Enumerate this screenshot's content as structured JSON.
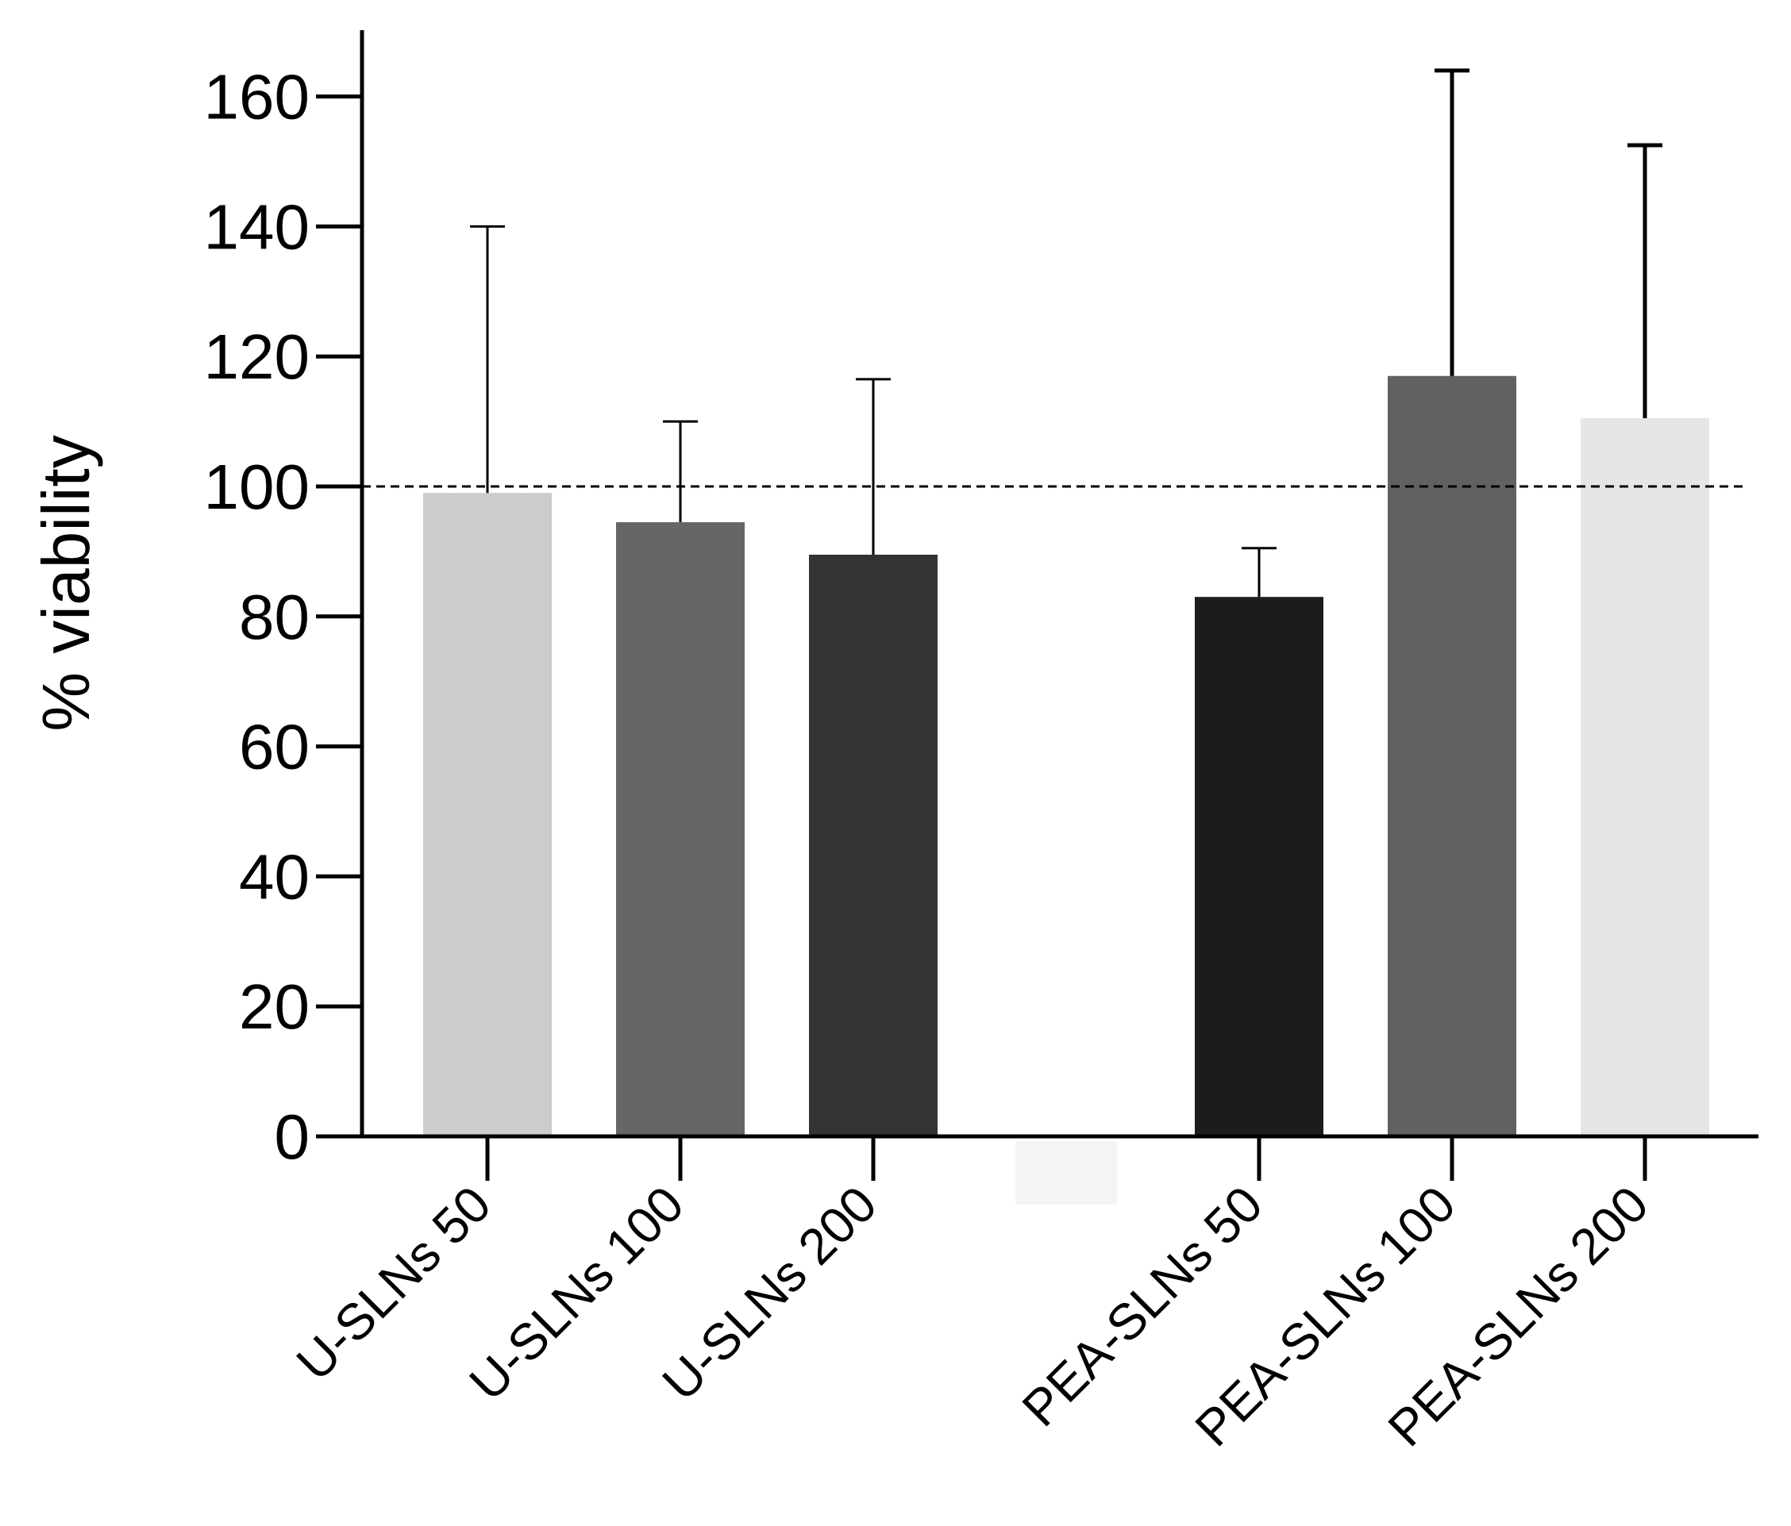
{
  "chart_data": {
    "type": "bar",
    "title": "",
    "xlabel": "",
    "ylabel": "% viability",
    "ylim": [
      0,
      170
    ],
    "yticks": [
      0,
      20,
      40,
      60,
      80,
      100,
      120,
      140,
      160
    ],
    "yticks_text": [
      "0",
      "20",
      "40",
      "60",
      "80",
      "100",
      "120",
      "140",
      "160"
    ],
    "reference_line": {
      "y": 100,
      "style": "dashed"
    },
    "categories": [
      "U-SLNs 50",
      "U-SLNs 100",
      "U-SLNs 200",
      "",
      "PEA-SLNs 50",
      "PEA-SLNs 100",
      "PEA-SLNs 200"
    ],
    "values": [
      99,
      94.5,
      89.5,
      null,
      83,
      117,
      110.5
    ],
    "errors": [
      41,
      15.5,
      27,
      null,
      7.5,
      47,
      42
    ],
    "colors": [
      "#cccccc",
      "#666666",
      "#333333",
      "#f4f4f4",
      "#1c1c1c",
      "#616161",
      "#e6e6e6"
    ],
    "grid": false
  }
}
